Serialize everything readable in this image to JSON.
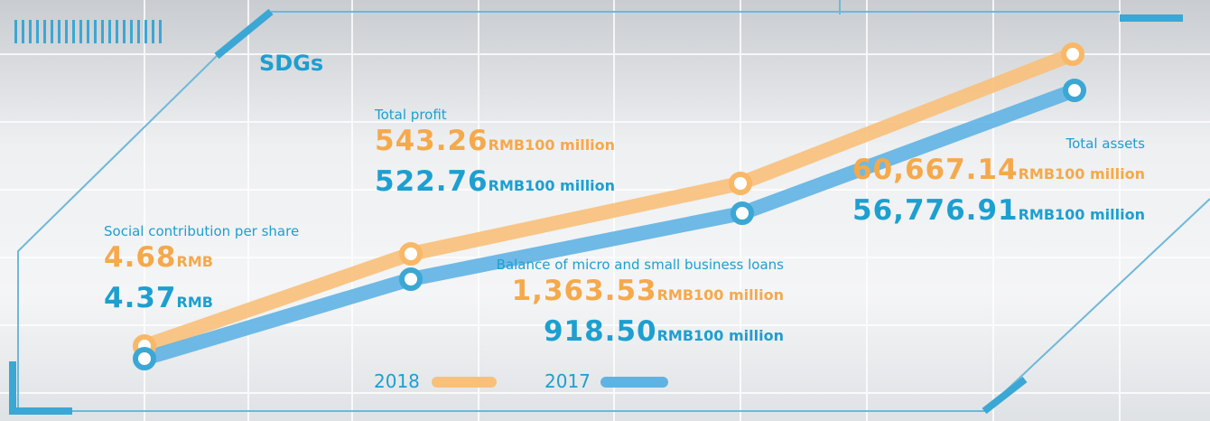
{
  "title": "SDGs",
  "metrics": [
    {
      "label": "Social contribution per share",
      "unit": "RMB",
      "values": [
        "4.68",
        "4.37"
      ]
    },
    {
      "label": "Total profit",
      "unit": "RMB100 million",
      "values": [
        "543.26",
        "522.76"
      ]
    },
    {
      "label": "Balance of micro and small business loans",
      "unit": "RMB100 million",
      "values": [
        "1,363.53",
        "918.50"
      ]
    },
    {
      "label": "Total assets",
      "unit": "RMB100 million",
      "values": [
        "60,667.14",
        "56,776.91"
      ]
    }
  ],
  "legend": [
    "2018",
    "2017"
  ]
}
